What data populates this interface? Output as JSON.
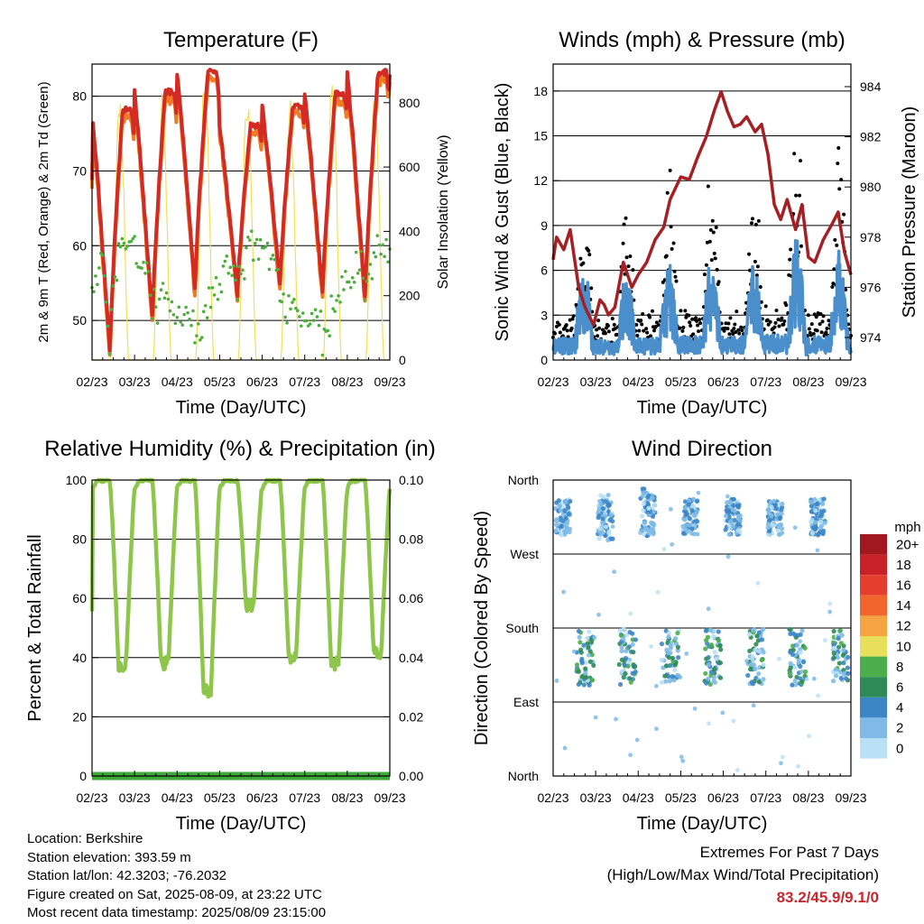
{
  "colors": {
    "temp2m": "#d42a24",
    "temp9m": "#f07b25",
    "dewpoint": "#4cae3c",
    "solar": "#f2df55",
    "gust": "#000000",
    "wind": "#4a8fcc",
    "pressure": "#a52025",
    "humidity": "#8ec64c",
    "precip": "#3fa83a",
    "extremes_value": "#c8282d"
  },
  "info": {
    "location": "Location: Berkshire",
    "elevation": "Station elevation: 393.59 m",
    "latlon": "Station lat/lon: 42.3203; -76.2032",
    "created": "Figure created on Sat, 2025-08-09, at 23:22 UTC",
    "recent": "Most recent data timestamp: 2025/08/09 23:15:00"
  },
  "extremes": {
    "title": "Extremes For Past 7 Days",
    "subtitle": "(High/Low/Max Wind/Total Precipitation)",
    "value": "83.2/45.9/9.1/0"
  },
  "chart_data": [
    {
      "type": "line",
      "title": "Temperature (F)",
      "xlabel": "Time (Day/UTC)",
      "ylabel": "2m & 9m T (Red, Orange) & 2m Td (Green)",
      "y2label": "Solar Insolation (Yellow)",
      "x_ticks": [
        "02/23",
        "03/23",
        "04/23",
        "05/23",
        "06/23",
        "07/23",
        "08/23",
        "09/23"
      ],
      "ylim": [
        44.7,
        84.3
      ],
      "y_ticks": [
        50,
        60,
        70,
        80
      ],
      "y2lim": [
        0,
        920
      ],
      "y2_ticks": [
        0,
        200,
        400,
        600,
        800
      ],
      "grid": true,
      "daily_high_2m": [
        78.2,
        80.6,
        83.2,
        76.0,
        78.8,
        80.3,
        83.2
      ],
      "daily_low_2m": [
        45.9,
        50.3,
        54.0,
        53.4,
        54.8,
        53.7,
        52.8
      ],
      "daily_solar_peak": [
        855,
        830,
        900,
        845,
        830,
        905,
        880
      ],
      "series": [
        {
          "name": "2m T",
          "color": "#d42a24"
        },
        {
          "name": "9m T",
          "color": "#f07b25"
        },
        {
          "name": "2m Td",
          "color": "#4cae3c"
        },
        {
          "name": "Solar Insolation",
          "color": "#f2df55"
        }
      ]
    },
    {
      "type": "line",
      "title": "Winds (mph) & Pressure (mb)",
      "xlabel": "Time (Day/UTC)",
      "ylabel": "Sonic Wind & Gust (Blue, Black)",
      "y2label": "Station Pressure (Maroon)",
      "x_ticks": [
        "02/23",
        "03/23",
        "04/23",
        "05/23",
        "06/23",
        "07/23",
        "08/23",
        "09/23"
      ],
      "ylim": [
        0,
        19.8
      ],
      "y_ticks": [
        0,
        3,
        6,
        9,
        12,
        15,
        18
      ],
      "y2lim": [
        973.1,
        984.9
      ],
      "y2_ticks": [
        974,
        976,
        978,
        980,
        982,
        984
      ],
      "grid": true,
      "pressure_points": [
        [
          0.0,
          977.1
        ],
        [
          0.08,
          978.0
        ],
        [
          0.25,
          977.5
        ],
        [
          0.4,
          978.3
        ],
        [
          0.6,
          976.0
        ],
        [
          0.75,
          975.2
        ],
        [
          0.95,
          974.5
        ],
        [
          1.1,
          975.5
        ],
        [
          1.2,
          975.3
        ],
        [
          1.3,
          974.9
        ],
        [
          1.45,
          975.2
        ],
        [
          1.65,
          977.0
        ],
        [
          1.85,
          976.0
        ],
        [
          2.0,
          976.5
        ],
        [
          2.2,
          977.0
        ],
        [
          2.4,
          977.9
        ],
        [
          2.6,
          978.4
        ],
        [
          2.75,
          979.5
        ],
        [
          3.0,
          980.4
        ],
        [
          3.2,
          980.3
        ],
        [
          3.4,
          981.2
        ],
        [
          3.6,
          982.0
        ],
        [
          3.8,
          983.1
        ],
        [
          3.95,
          983.8
        ],
        [
          4.1,
          983.0
        ],
        [
          4.25,
          982.4
        ],
        [
          4.4,
          982.5
        ],
        [
          4.55,
          982.8
        ],
        [
          4.75,
          982.2
        ],
        [
          4.9,
          982.5
        ],
        [
          5.05,
          981.3
        ],
        [
          5.2,
          979.3
        ],
        [
          5.35,
          978.7
        ],
        [
          5.5,
          979.5
        ],
        [
          5.7,
          978.3
        ],
        [
          5.85,
          979.3
        ],
        [
          6.0,
          977.2
        ],
        [
          6.15,
          977.0
        ],
        [
          6.35,
          977.9
        ],
        [
          6.55,
          978.5
        ],
        [
          6.7,
          979.0
        ],
        [
          6.85,
          977.4
        ],
        [
          7.0,
          976.5
        ]
      ],
      "gust_daily_peak": [
        12.5,
        11.5,
        13.5,
        15.0,
        14.8,
        18.0,
        15.8
      ],
      "series": [
        {
          "name": "Sonic Wind",
          "color": "#4a8fcc"
        },
        {
          "name": "Gust",
          "color": "#000000"
        },
        {
          "name": "Station Pressure",
          "color": "#a52025"
        }
      ]
    },
    {
      "type": "line",
      "title": "Relative Humidity (%) & Precipitation (in)",
      "xlabel": "Time (Day/UTC)",
      "ylabel": "Percent & Total Rainfall",
      "x_ticks": [
        "02/23",
        "03/23",
        "04/23",
        "05/23",
        "06/23",
        "07/23",
        "08/23",
        "09/23"
      ],
      "ylim": [
        0,
        100
      ],
      "y_ticks": [
        0,
        20,
        40,
        60,
        80,
        100
      ],
      "y2lim": [
        0,
        0.1
      ],
      "y2_ticks": [
        "0.00",
        "0.02",
        "0.04",
        "0.06",
        "0.08",
        "0.10"
      ],
      "grid": true,
      "daily_min_rh": [
        37,
        38,
        29,
        57,
        40,
        38,
        41
      ],
      "daily_max_rh": [
        100,
        100,
        100,
        100,
        100,
        100,
        100
      ],
      "total_precip": 0,
      "series": [
        {
          "name": "Relative Humidity",
          "color": "#8ec64c"
        },
        {
          "name": "Precipitation",
          "color": "#3fa83a"
        }
      ]
    },
    {
      "type": "scatter",
      "title": "Wind Direction",
      "xlabel": "Time (Day/UTC)",
      "ylabel": "Direction (Colored By Speed)",
      "x_ticks": [
        "02/23",
        "03/23",
        "04/23",
        "05/23",
        "06/23",
        "07/23",
        "08/23",
        "09/23"
      ],
      "y_ticks": [
        "North",
        "East",
        "South",
        "West",
        "North"
      ],
      "ylim": [
        0,
        360
      ],
      "grid": true,
      "colorbar": {
        "title": "mph",
        "labels": [
          "20+",
          "18",
          "16",
          "14",
          "12",
          "10",
          "8",
          "6",
          "4",
          "2",
          "0"
        ],
        "colors": [
          "#a3171e",
          "#c82128",
          "#e43f2e",
          "#f0662d",
          "#f6a443",
          "#e8e05c",
          "#4cae4a",
          "#2e8b57",
          "#3c86c6",
          "#7fbbe6",
          "#b9e0f6"
        ]
      },
      "day_clusters": [
        {
          "day": 0,
          "center": 315,
          "spread": 22
        },
        {
          "day": 1,
          "center": 315,
          "spread": 28
        },
        {
          "day": 2,
          "center": 320,
          "spread": 30
        },
        {
          "day": 3,
          "center": 315,
          "spread": 22
        },
        {
          "day": 4,
          "center": 315,
          "spread": 22
        },
        {
          "day": 5,
          "center": 315,
          "spread": 22
        },
        {
          "day": 6,
          "center": 315,
          "spread": 22
        }
      ]
    }
  ]
}
